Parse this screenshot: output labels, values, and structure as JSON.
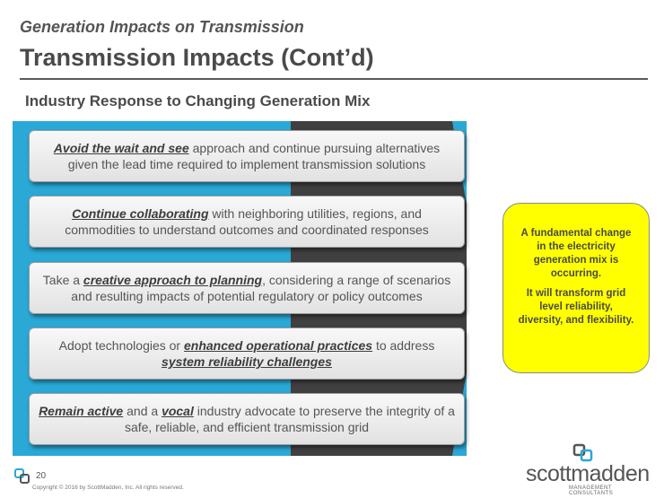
{
  "header": {
    "subtitle": "Generation Impacts on Transmission",
    "title": "Transmission Impacts (Cont’d)"
  },
  "section_heading": "Industry Response to Changing Generation Mix",
  "cards": [
    {
      "lead_em": "Avoid the wait and see",
      "text1": " approach and continue pursuing alternatives given the lead time required to implement transmission solutions"
    },
    {
      "lead_em": "Continue collaborating",
      "text1": " with neighboring utilities, regions, and commodities to understand outcomes and coordinated responses"
    },
    {
      "text0": "Take a ",
      "mid_em": "creative approach to planning",
      "text1": ", considering a range of scenarios and resulting impacts of potential regulatory or policy outcomes"
    },
    {
      "text0": "Adopt technologies or ",
      "mid_em": "enhanced operational practices",
      "text1": " to address ",
      "tail_em": "system reliability challenges"
    },
    {
      "lead_em": "Remain active",
      "text1": " and a ",
      "mid_em": "vocal",
      "text2": " industry advocate to preserve the integrity of a safe, reliable, and efficient transmission grid"
    }
  ],
  "callout": {
    "line1": "A fundamental change in the electricity generation mix is occurring.",
    "line2": "It will transform grid level reliability, diversity, and flexibility."
  },
  "footer": {
    "page_number": "20",
    "copyright": "Copyright © 2016 by ScottMadden, Inc. All rights reserved."
  },
  "logo": {
    "wordmark": "scottmadden",
    "tagline": "MANAGEMENT CONSULTANTS"
  },
  "colors": {
    "panel": "#2aa8d6",
    "arrow": "#404040",
    "callout": "#ffff00"
  }
}
